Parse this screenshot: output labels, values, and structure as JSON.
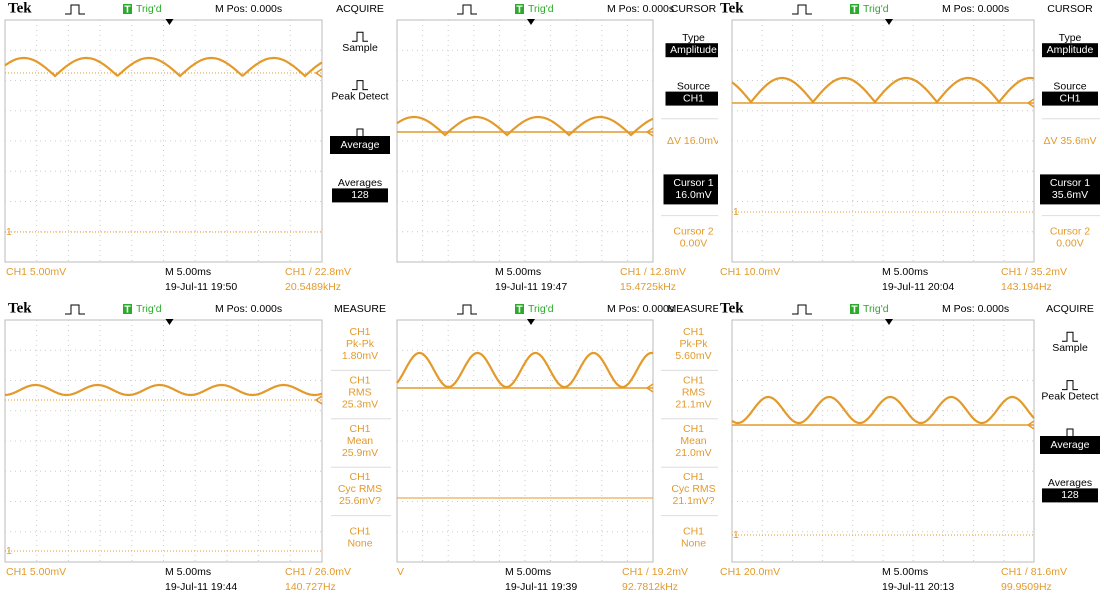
{
  "panels": [
    {
      "header": {
        "brand": "Tek",
        "trig_icon": "T",
        "trig": "Trig'd",
        "mpos": "M Pos: 0.000s",
        "menu_title": "ACQUIRE"
      },
      "menu": [
        {
          "label": "Sample"
        },
        {
          "label": "Peak Detect"
        },
        {
          "label": "Average",
          "highlight": "all"
        },
        {
          "label": "Averages",
          "value": "128",
          "highlight": "value"
        }
      ],
      "ch_marker": "1",
      "footer": {
        "ch_scale": "CH1  5.00mV",
        "timebase": "M 5.00ms",
        "trigger": "CH1 / 22.8mV",
        "date": "19-Jul-11 19:50",
        "freq": "20.5489kHz"
      }
    },
    {
      "header": {
        "trig_icon": "T",
        "trig": "Trig'd",
        "mpos": "M Pos: 0.000s",
        "menu_title": "CURSOR"
      },
      "menu": [
        {
          "label": "Type",
          "value": "Amplitude",
          "highlight": "value"
        },
        {
          "label": "Source",
          "value": "CH1",
          "highlight": "value"
        },
        {
          "label": "ΔV 16.0mV",
          "color": "#e39a2b"
        },
        {
          "label": "Cursor 1",
          "value": "16.0mV",
          "highlight": "all"
        },
        {
          "label": "Cursor 2",
          "value": "0.00V",
          "color": "#e39a2b"
        }
      ],
      "footer": {
        "timebase": "M 5.00ms",
        "trigger": "CH1 / 12.8mV",
        "date": "19-Jul-11 19:47",
        "freq": "15.4725kHz"
      }
    },
    {
      "header": {
        "brand": "Tek",
        "trig_icon": "T",
        "trig": "Trig'd",
        "mpos": "M Pos: 0.000s",
        "menu_title": "CURSOR"
      },
      "menu": [
        {
          "label": "Type",
          "value": "Amplitude",
          "highlight": "value"
        },
        {
          "label": "Source",
          "value": "CH1",
          "highlight": "value"
        },
        {
          "label": "ΔV 35.6mV",
          "color": "#e39a2b"
        },
        {
          "label": "Cursor 1",
          "value": "35.6mV",
          "highlight": "all"
        },
        {
          "label": "Cursor 2",
          "value": "0.00V",
          "color": "#e39a2b"
        }
      ],
      "ch_marker": "1",
      "footer": {
        "ch_scale": "CH1  10.0mV",
        "timebase": "M 5.00ms",
        "trigger": "CH1 / 35.2mV",
        "date": "19-Jul-11 20:04",
        "freq": "143.194Hz"
      }
    },
    {
      "header": {
        "brand": "Tek",
        "trig_icon": "T",
        "trig": "Trig'd",
        "mpos": "M Pos: 0.000s",
        "menu_title": "MEASURE"
      },
      "menu": [
        {
          "label": "CH1",
          "value": "Pk-Pk",
          "extra": "1.80mV",
          "color": "#e39a2b"
        },
        {
          "label": "CH1",
          "value": "RMS",
          "extra": "25.3mV",
          "color": "#e39a2b"
        },
        {
          "label": "CH1",
          "value": "Mean",
          "extra": "25.9mV",
          "color": "#e39a2b"
        },
        {
          "label": "CH1",
          "value": "Cyc RMS",
          "extra": "25.6mV?",
          "color": "#e39a2b"
        },
        {
          "label": "CH1",
          "value": "None",
          "color": "#e39a2b"
        }
      ],
      "ch_marker": "1",
      "footer": {
        "ch_scale": "CH1  5.00mV",
        "timebase": "M 5.00ms",
        "trigger": "CH1 / 26.0mV",
        "date": "19-Jul-11 19:44",
        "freq": "140.727Hz"
      }
    },
    {
      "header": {
        "brand": "Tek",
        "trig_icon": "T",
        "trig": "Trig'd",
        "mpos": "M Pos: 0.000s",
        "menu_title": "MEASURE"
      },
      "menu": [
        {
          "label": "CH1",
          "value": "Pk-Pk",
          "extra": "5.60mV",
          "color": "#e39a2b"
        },
        {
          "label": "CH1",
          "value": "RMS",
          "extra": "21.1mV",
          "color": "#e39a2b"
        },
        {
          "label": "CH1",
          "value": "Mean",
          "extra": "21.0mV",
          "color": "#e39a2b"
        },
        {
          "label": "CH1",
          "value": "Cyc RMS",
          "extra": "21.1mV?",
          "color": "#e39a2b"
        },
        {
          "label": "CH1",
          "value": "None",
          "color": "#e39a2b"
        }
      ],
      "footer": {
        "ch_scale": "V",
        "timebase": "M 5.00ms",
        "trigger": "CH1 / 19.2mV",
        "date": "19-Jul-11 19:39",
        "freq": "92.7812kHz"
      }
    },
    {
      "header": {
        "brand": "Tek",
        "trig_icon": "T",
        "trig": "Trig'd",
        "mpos": "M Pos: 0.000s",
        "menu_title": "ACQUIRE"
      },
      "menu": [
        {
          "label": "Sample"
        },
        {
          "label": "Peak Detect"
        },
        {
          "label": "Average",
          "highlight": "all"
        },
        {
          "label": "Averages",
          "value": "128",
          "highlight": "value"
        }
      ],
      "ch_marker": "1",
      "footer": {
        "ch_scale": "CH1  20.0mV",
        "timebase": "M 5.00ms",
        "trigger": "CH1 / 81.6mV",
        "date": "19-Jul-11 20:13",
        "freq": "99.9509Hz"
      }
    }
  ]
}
